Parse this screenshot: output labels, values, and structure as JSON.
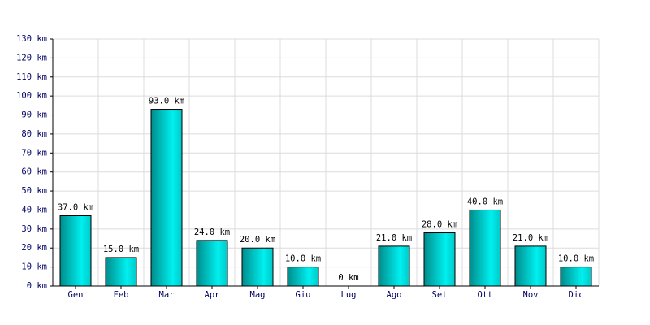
{
  "chart_data": {
    "type": "bar",
    "categories": [
      "Gen",
      "Feb",
      "Mar",
      "Apr",
      "Mag",
      "Giu",
      "Lug",
      "Ago",
      "Set",
      "Ott",
      "Nov",
      "Dic"
    ],
    "values": [
      37,
      15,
      93,
      24,
      20,
      10,
      0,
      21,
      28,
      40,
      21,
      10
    ],
    "value_labels": [
      "37.0 km",
      "15.0 km",
      "93.0 km",
      "24.0 km",
      "20.0 km",
      "10.0 km",
      "0 km",
      "21.0 km",
      "28.0 km",
      "40.0 km",
      "21.0 km",
      "10.0 km"
    ],
    "color": "#00d8d8",
    "ylim": [
      0,
      130
    ],
    "yticks": [
      {
        "value": 0,
        "label": "0 km"
      },
      {
        "value": 10,
        "label": "10 km"
      },
      {
        "value": 20,
        "label": "20 km"
      },
      {
        "value": 30,
        "label": "30 km"
      },
      {
        "value": 40,
        "label": "40 km"
      },
      {
        "value": 50,
        "label": "50 km"
      },
      {
        "value": 60,
        "label": "60 km"
      },
      {
        "value": 70,
        "label": "70 km"
      },
      {
        "value": 80,
        "label": "80 km"
      },
      {
        "value": 90,
        "label": "90 km"
      },
      {
        "value": 100,
        "label": "100 km"
      },
      {
        "value": 110,
        "label": "110 km"
      },
      {
        "value": 120,
        "label": "120 km"
      },
      {
        "value": 130,
        "label": "130 km"
      }
    ],
    "grid": true
  }
}
